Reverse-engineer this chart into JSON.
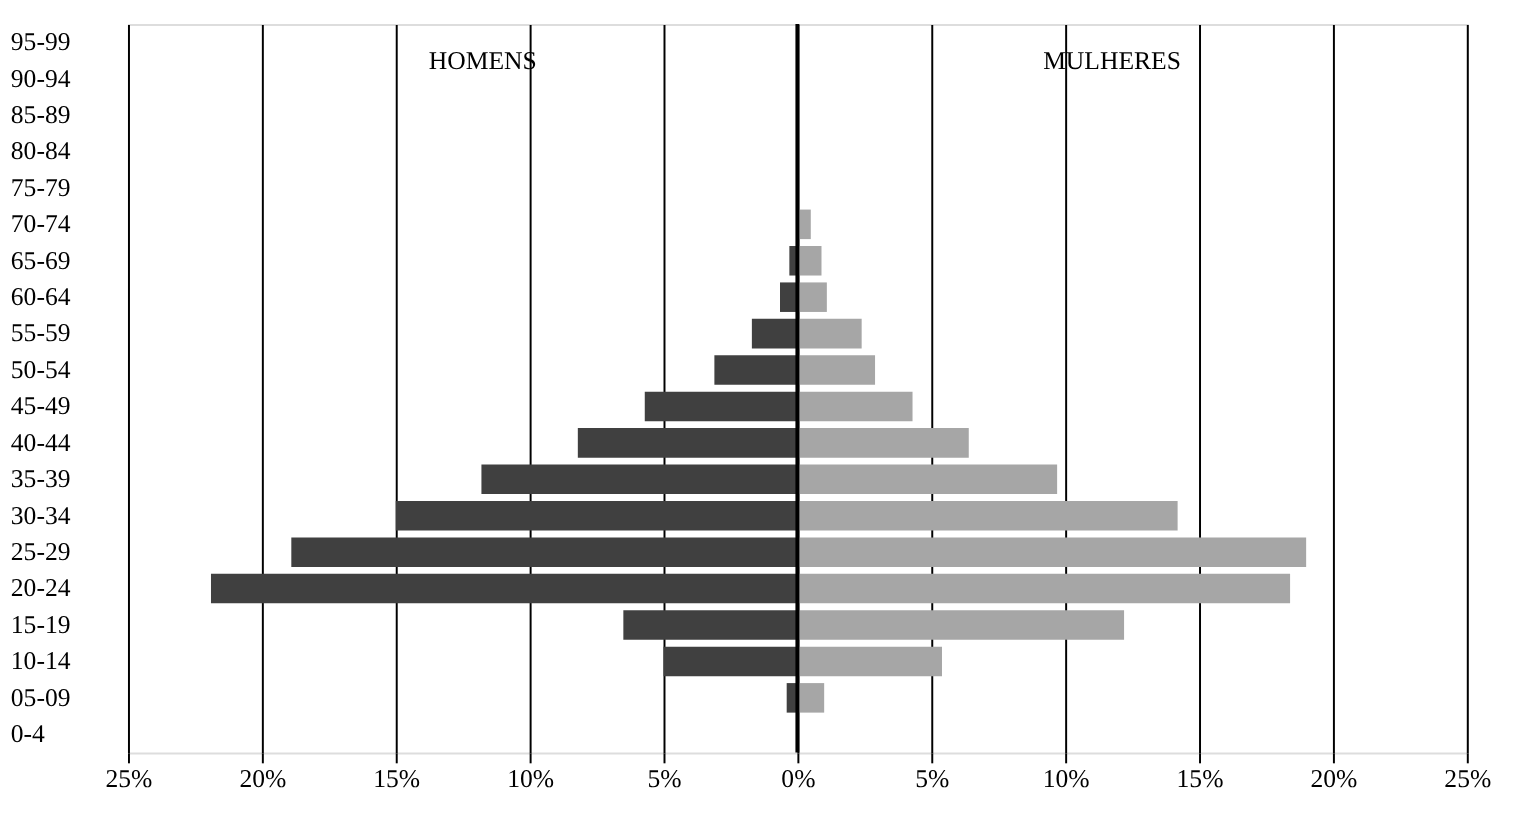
{
  "chart_data": {
    "type": "bar",
    "orientation": "horizontal",
    "categories": [
      "95-99",
      "90-94",
      "85-89",
      "80-84",
      "75-79",
      "70-74",
      "65-69",
      "60-64",
      "55-59",
      "50-54",
      "45-49",
      "40-44",
      "35-39",
      "30-34",
      "25-29",
      "20-24",
      "15-19",
      "10-14",
      "05-09",
      "0-4"
    ],
    "series": [
      {
        "color": "#404040",
        "values": [
          0,
          0,
          0,
          0,
          0,
          null,
          -0.3,
          -0.65,
          -1.7,
          -3.1,
          -5.7,
          -8.2,
          -11.8,
          -15.0,
          -18.9,
          -21.9,
          -6.5,
          -5.0,
          -0.4,
          0
        ]
      },
      {
        "color": "#a6a6a6",
        "values": [
          0,
          0,
          0,
          0,
          null,
          0.5,
          0.9,
          1.1,
          2.4,
          2.9,
          4.3,
          6.4,
          9.7,
          14.2,
          19.0,
          18.4,
          12.2,
          5.4,
          1.0,
          0
        ]
      }
    ],
    "xlim": [
      -25,
      25
    ],
    "xticks": [
      {
        "value": -25,
        "label": "25%"
      },
      {
        "value": -20,
        "label": "20%"
      },
      {
        "value": -15,
        "label": "15%"
      },
      {
        "value": -10,
        "label": "10%"
      },
      {
        "value": -5,
        "label": "5%"
      },
      {
        "value": 0,
        "label": "0%"
      },
      {
        "value": 5,
        "label": "5%"
      },
      {
        "value": 10,
        "label": "10%"
      },
      {
        "value": 15,
        "label": "15%"
      },
      {
        "value": 20,
        "label": "20%"
      },
      {
        "value": 25,
        "label": "25%"
      }
    ],
    "grid": "x",
    "stacked": true,
    "annotations": [
      "HOMENS",
      "MULHERES"
    ],
    "ref_lines": [
      {
        "axis": "x",
        "value": 0,
        "color": "#000000"
      }
    ]
  }
}
